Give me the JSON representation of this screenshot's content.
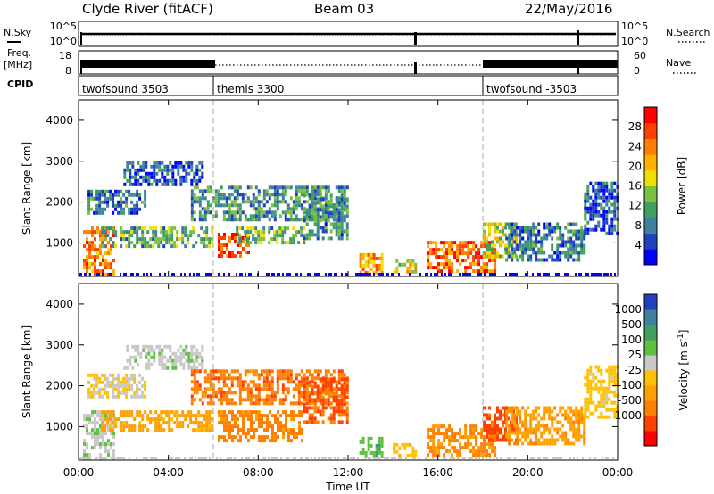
{
  "header": {
    "station": "Clyde River (fitACF)",
    "beam": "Beam 03",
    "date": "22/May/2016"
  },
  "summary_panels": {
    "nsky_label": "N.Sky",
    "nsky_ticks": [
      "10^5",
      "10^0"
    ],
    "nsearch_label": "N.Search",
    "nsearch_ticks": [
      "10^5",
      "10^0"
    ],
    "freq_label": "Freq.",
    "freq_unit": "[MHz]",
    "freq_ticks": [
      "18",
      "8"
    ],
    "nave_label": "Nave",
    "nave_ticks": [
      "60",
      "0"
    ],
    "cpid_label": "CPID",
    "cpid_segments": [
      {
        "name": "twofsound 3503",
        "start_hour": 0,
        "end_hour": 6
      },
      {
        "name": "themis 3300",
        "start_hour": 6,
        "end_hour": 18
      },
      {
        "name": "twofsound -3503",
        "start_hour": 18,
        "end_hour": 24
      }
    ]
  },
  "chart_data": [
    {
      "type": "heatmap",
      "quantity": "power",
      "x": {
        "label": "Time UT",
        "ticks": [
          "00:00",
          "04:00",
          "08:00",
          "12:00",
          "16:00",
          "20:00",
          "00:00"
        ],
        "range_hours": [
          0,
          24
        ]
      },
      "y": {
        "label": "Slant Range [km]",
        "ticks": [
          1000,
          2000,
          3000,
          4000
        ],
        "range": [
          180,
          4500
        ]
      },
      "colorbar": {
        "label": "Power [dB]",
        "ticks": [
          4,
          8,
          12,
          16,
          20,
          24,
          28
        ],
        "range": [
          0,
          32
        ],
        "colors": [
          "#0000ff",
          "#2040c0",
          "#3f7fa0",
          "#3f9f5f",
          "#7fbf3f",
          "#f0e000",
          "#ffb000",
          "#ff7f00",
          "#ff4000",
          "#ff0000"
        ]
      },
      "echo_regions": [
        {
          "t0": 0.2,
          "t1": 1.6,
          "r0": 250,
          "r1": 1400,
          "power": 24
        },
        {
          "t0": 1.0,
          "t1": 6.0,
          "r0": 900,
          "r1": 1400,
          "power": 12
        },
        {
          "t0": 0.4,
          "t1": 3.0,
          "r0": 1700,
          "r1": 2300,
          "power": 8
        },
        {
          "t0": 2.0,
          "t1": 5.5,
          "r0": 2400,
          "r1": 3000,
          "power": 6
        },
        {
          "t0": 5.0,
          "t1": 12.0,
          "r0": 1600,
          "r1": 2400,
          "power": 10
        },
        {
          "t0": 6.2,
          "t1": 7.6,
          "r0": 700,
          "r1": 1250,
          "power": 28
        },
        {
          "t0": 7.0,
          "t1": 10.0,
          "r0": 1000,
          "r1": 1400,
          "power": 12
        },
        {
          "t0": 10.0,
          "t1": 12.0,
          "r0": 1100,
          "r1": 2200,
          "power": 9
        },
        {
          "t0": 12.5,
          "t1": 13.5,
          "r0": 300,
          "r1": 750,
          "power": 22
        },
        {
          "t0": 14.0,
          "t1": 15.0,
          "r0": 300,
          "r1": 600,
          "power": 18
        },
        {
          "t0": 15.5,
          "t1": 18.5,
          "r0": 300,
          "r1": 1050,
          "power": 26
        },
        {
          "t0": 18.0,
          "t1": 19.5,
          "r0": 700,
          "r1": 1500,
          "power": 16
        },
        {
          "t0": 19.0,
          "t1": 22.5,
          "r0": 600,
          "r1": 1500,
          "power": 8
        },
        {
          "t0": 22.5,
          "t1": 24.0,
          "r0": 1200,
          "r1": 2500,
          "power": 6
        }
      ]
    },
    {
      "type": "heatmap",
      "quantity": "velocity",
      "x": {
        "label": "Time UT",
        "ticks": [
          "00:00",
          "04:00",
          "08:00",
          "12:00",
          "16:00",
          "20:00",
          "00:00"
        ],
        "range_hours": [
          0,
          24
        ]
      },
      "y": {
        "label": "Slant Range [km]",
        "ticks": [
          1000,
          2000,
          3000,
          4000
        ],
        "range": [
          180,
          4500
        ]
      },
      "colorbar": {
        "label": "Velocity [m s",
        "label_superscript": "-1",
        "label_close": "]",
        "ticks": [
          "1000",
          "500",
          "100",
          "25",
          "-25",
          "-100",
          "-500",
          "-1000"
        ],
        "colors": [
          "#2040c0",
          "#3f7fa0",
          "#3f9f5f",
          "#60c040",
          "#c8c8c8",
          "#ffc000",
          "#ffa000",
          "#ff7f00",
          "#ff4000",
          "#ff0000"
        ]
      },
      "echo_regions": [
        {
          "t0": 0.2,
          "t1": 1.6,
          "r0": 250,
          "r1": 1400,
          "velocity": 10
        },
        {
          "t0": 1.0,
          "t1": 6.0,
          "r0": 900,
          "r1": 1400,
          "velocity": -150
        },
        {
          "t0": 0.4,
          "t1": 3.0,
          "r0": 1700,
          "r1": 2300,
          "velocity": -20
        },
        {
          "t0": 2.0,
          "t1": 5.5,
          "r0": 2400,
          "r1": 3000,
          "velocity": 5
        },
        {
          "t0": 5.0,
          "t1": 12.0,
          "r0": 1600,
          "r1": 2400,
          "velocity": -400
        },
        {
          "t0": 6.2,
          "t1": 10.0,
          "r0": 700,
          "r1": 1400,
          "velocity": -350
        },
        {
          "t0": 10.0,
          "t1": 12.0,
          "r0": 1100,
          "r1": 2200,
          "velocity": -600
        },
        {
          "t0": 12.5,
          "t1": 13.5,
          "r0": 300,
          "r1": 750,
          "velocity": 80
        },
        {
          "t0": 14.0,
          "t1": 15.0,
          "r0": 300,
          "r1": 600,
          "velocity": -80
        },
        {
          "t0": 15.5,
          "t1": 18.5,
          "r0": 300,
          "r1": 1050,
          "velocity": -300
        },
        {
          "t0": 18.0,
          "t1": 19.5,
          "r0": 700,
          "r1": 1500,
          "velocity": -700
        },
        {
          "t0": 19.0,
          "t1": 22.5,
          "r0": 600,
          "r1": 1500,
          "velocity": -200
        },
        {
          "t0": 22.5,
          "t1": 24.0,
          "r0": 1200,
          "r1": 2500,
          "velocity": -50
        }
      ]
    }
  ]
}
